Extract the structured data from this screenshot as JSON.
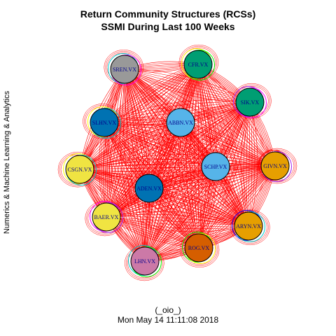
{
  "title_line1": "Return Community Structures (RCSs)",
  "title_line2": "SSMI During Last 100 Weeks",
  "side_label": "Numerics & Machine Learning & Analytics",
  "footer_line1": "(_oio_)",
  "footer_line2": "Mon May 14 11:11:08 2018",
  "edge_color": "#ff0000",
  "nodes": [
    {
      "id": "SREN.VX",
      "fill": "#999999",
      "text_color": "#00008b",
      "ring_colors": [
        "#00ced1",
        "#ff00ff"
      ]
    },
    {
      "id": "CFR.VX",
      "fill": "#009e73",
      "text_color": "#00008b",
      "ring_colors": [
        "#ffff00",
        "#00ff00"
      ]
    },
    {
      "id": "SIK.VX",
      "fill": "#009e73",
      "text_color": "#00008b",
      "ring_colors": [
        "#a020f0",
        "#ff00ff"
      ]
    },
    {
      "id": "SLHN.VX",
      "fill": "#0072b2",
      "text_color": "#00008b",
      "ring_colors": [
        "#ffff00",
        "#00ced1"
      ]
    },
    {
      "id": "ABBN.VX",
      "fill": "#56b4e9",
      "text_color": "#00008b",
      "ring_colors": [
        "#000000"
      ]
    },
    {
      "id": "CSGN.VX",
      "fill": "#f0e442",
      "text_color": "#00008b",
      "ring_colors": [
        "#ffff00",
        "#00ced1"
      ]
    },
    {
      "id": "SCHP.VX",
      "fill": "#56b4e9",
      "text_color": "#00008b",
      "ring_colors": [
        "#000000"
      ]
    },
    {
      "id": "GIVN.VX",
      "fill": "#e69f00",
      "text_color": "#00008b",
      "ring_colors": [
        "#ff0000",
        "#a020f0"
      ]
    },
    {
      "id": "ADEN.VX",
      "fill": "#0072b2",
      "text_color": "#00008b",
      "ring_colors": [
        "#000000"
      ]
    },
    {
      "id": "BAER.VX",
      "fill": "#f0e442",
      "text_color": "#00008b",
      "ring_colors": [
        "#ff00ff",
        "#a020f0"
      ]
    },
    {
      "id": "ARYN.VX",
      "fill": "#e69f00",
      "text_color": "#00008b",
      "ring_colors": [
        "#0000ff",
        "#00ced1"
      ]
    },
    {
      "id": "ROG.VX",
      "fill": "#d55e00",
      "text_color": "#00008b",
      "ring_colors": [
        "#00ff00",
        "#ffff00"
      ]
    },
    {
      "id": "LHN.VX",
      "fill": "#cc79a7",
      "text_color": "#00008b",
      "ring_colors": [
        "#00ced1",
        "#00ff00"
      ]
    }
  ]
}
